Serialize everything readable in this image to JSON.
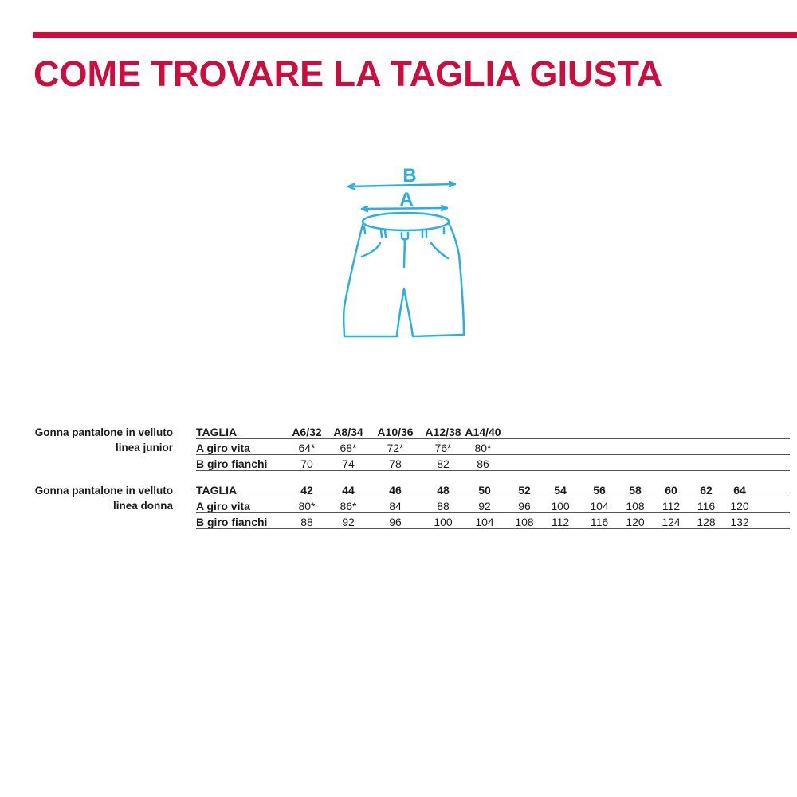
{
  "title": "COME TROVARE LA TAGLIA GIUSTA",
  "colors": {
    "accent": "#cc0d3d",
    "drawing": "#29aee6"
  },
  "drawing": {
    "label_a": "A",
    "label_b": "B",
    "icon": "shorts-measurement-diagram"
  },
  "tables": [
    {
      "label_line1": "Gonna pantalone in velluto",
      "label_line2": "linea junior",
      "rows": [
        {
          "head": "TAGLIA",
          "values": [
            "A6/32",
            "A8/34",
            "A10/36",
            "A12/38",
            "A14/40"
          ]
        },
        {
          "head": "A giro vita",
          "values": [
            "64*",
            "68*",
            "72*",
            "76*",
            "80*"
          ]
        },
        {
          "head": "B giro fianchi",
          "values": [
            "70",
            "74",
            "78",
            "82",
            "86"
          ]
        }
      ]
    },
    {
      "label_line1": "Gonna pantalone in velluto",
      "label_line2": "linea donna",
      "rows": [
        {
          "head": "TAGLIA",
          "values": [
            "42",
            "44",
            "46",
            "48",
            "50",
            "52",
            "54",
            "56",
            "58",
            "60",
            "62",
            "64"
          ]
        },
        {
          "head": "A giro vita",
          "values": [
            "80*",
            "86*",
            "84",
            "88",
            "92",
            "96",
            "100",
            "104",
            "108",
            "112",
            "116",
            "120"
          ]
        },
        {
          "head": "B giro fianchi",
          "values": [
            "88",
            "92",
            "96",
            "100",
            "104",
            "108",
            "112",
            "116",
            "120",
            "124",
            "128",
            "132"
          ]
        }
      ]
    }
  ]
}
